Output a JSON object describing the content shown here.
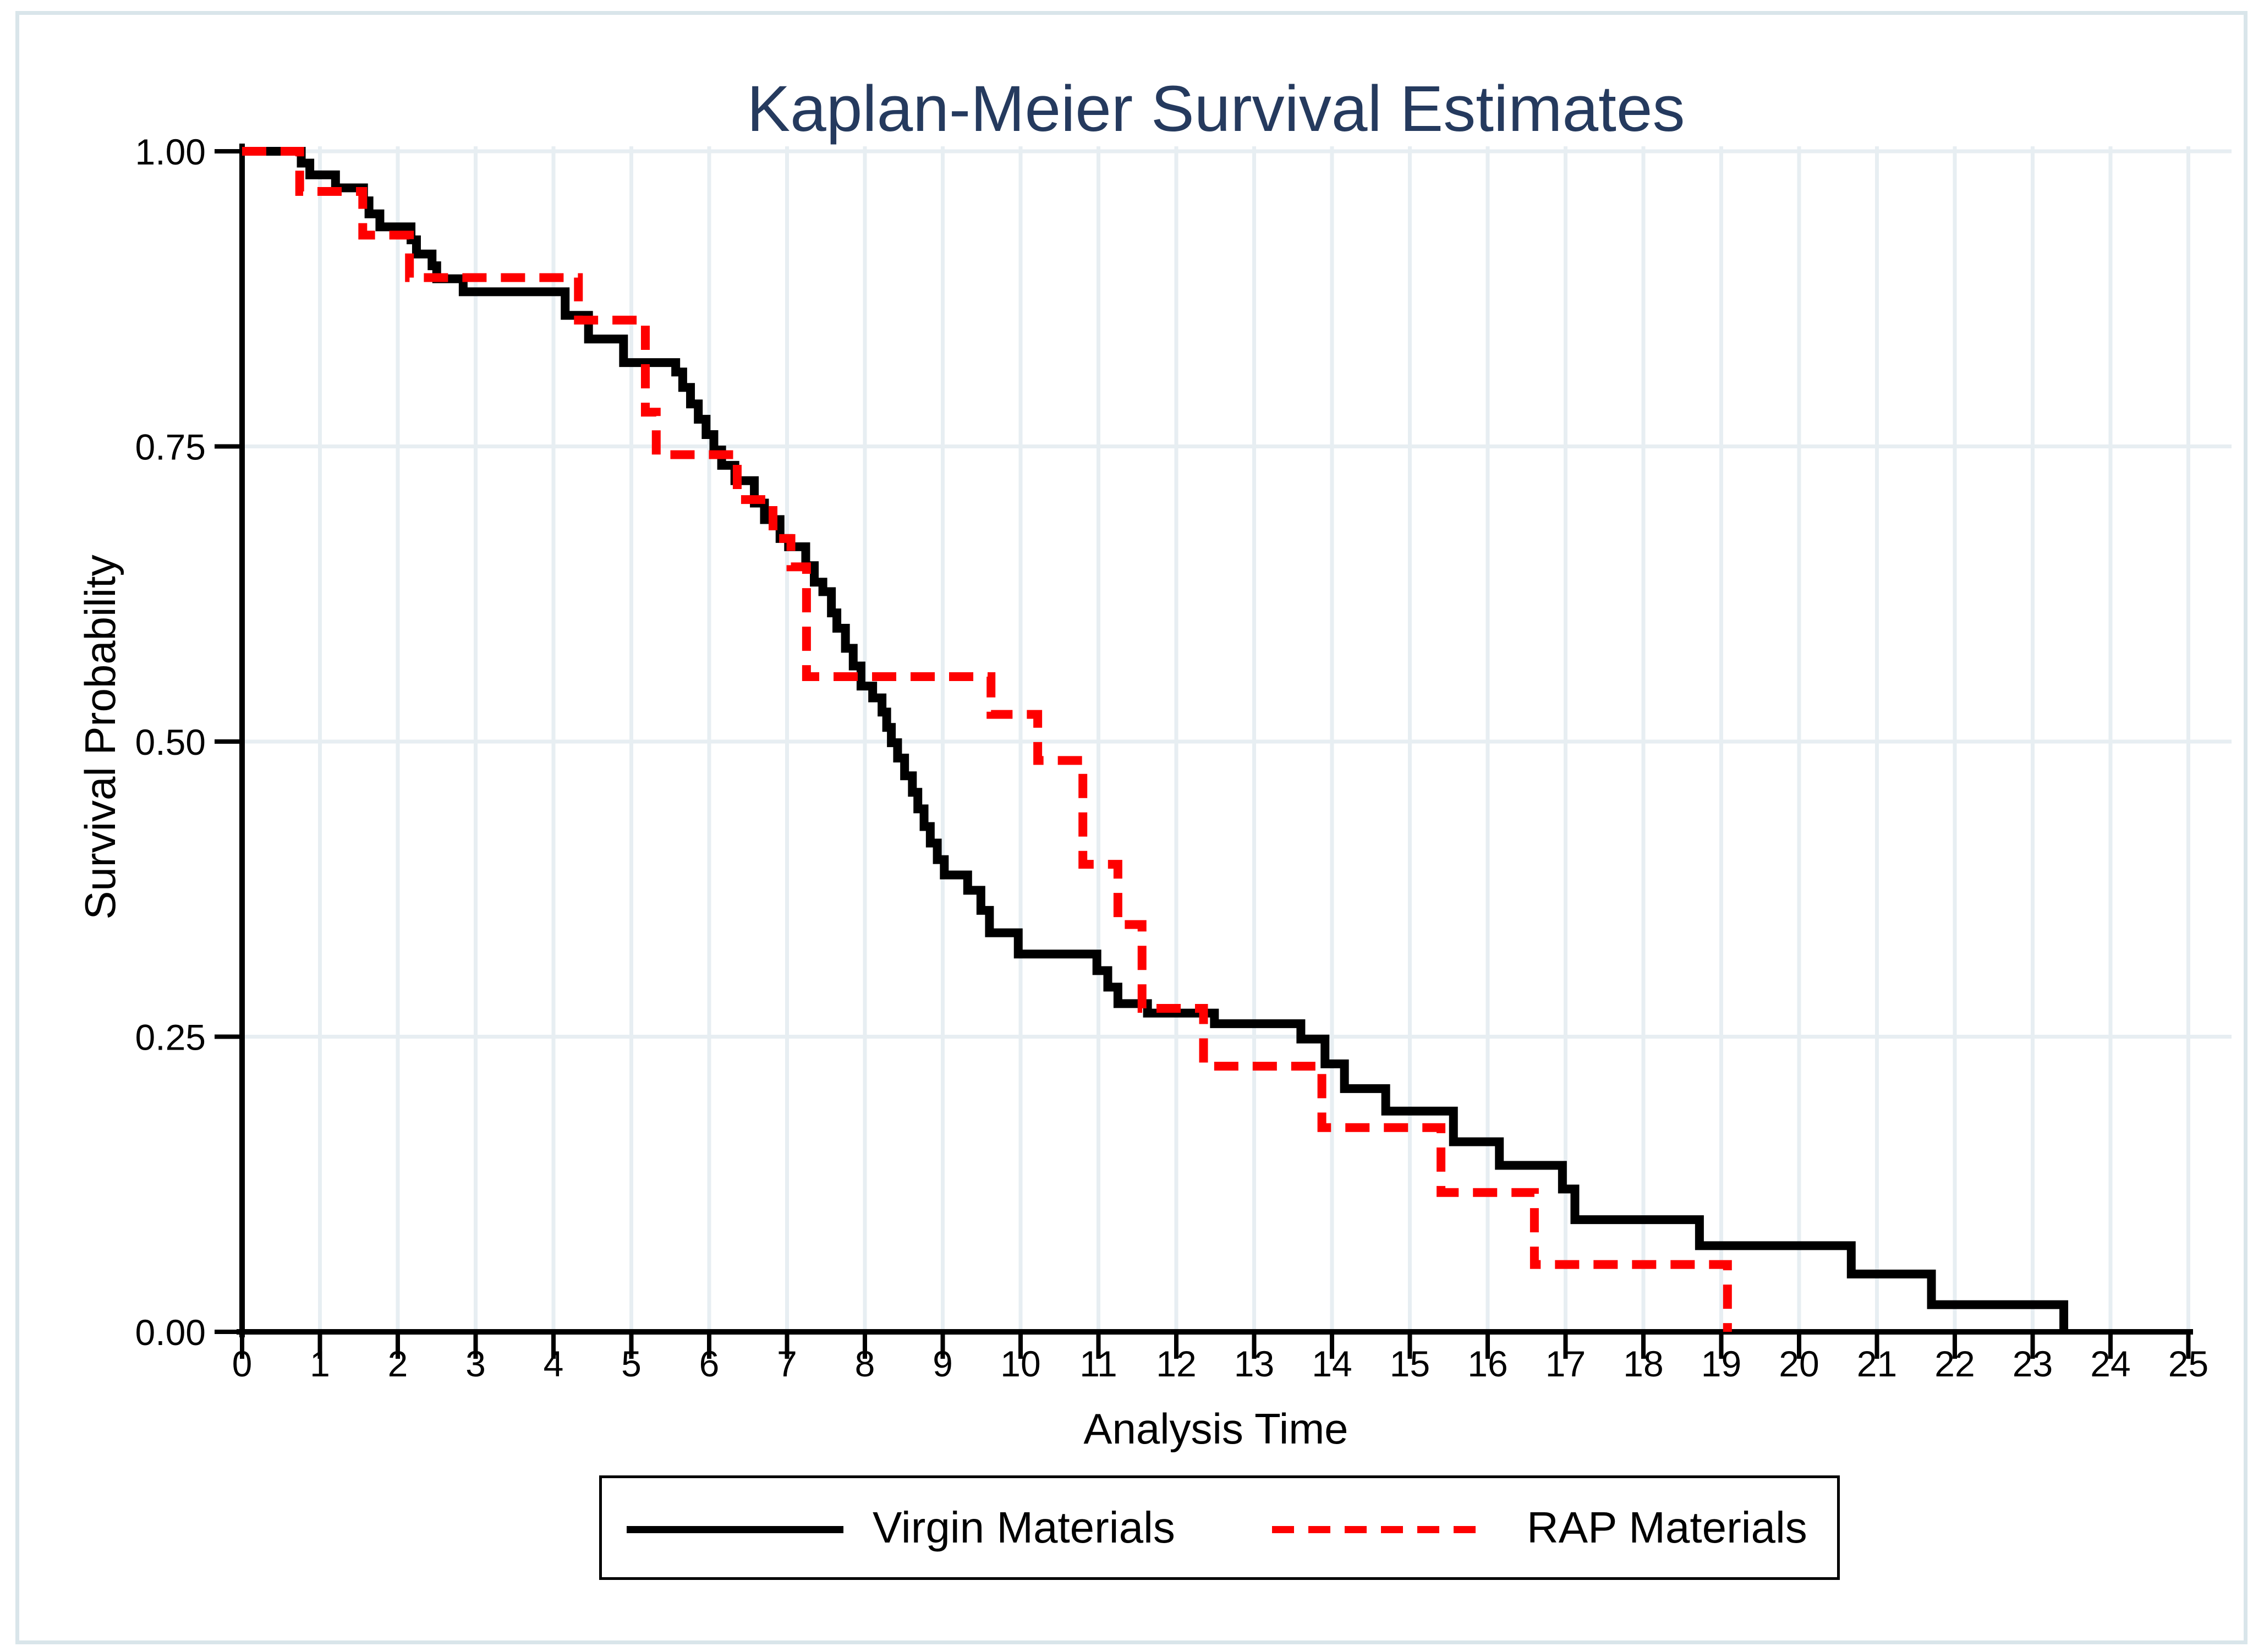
{
  "figure": {
    "background": "#ffffff",
    "border_color": "#d9e5ea",
    "title_color": "#253a5e"
  },
  "chart_data": {
    "type": "line",
    "subtype": "kaplan-meier-step",
    "title": "Kaplan-Meier Survival Estimates",
    "xlabel": "Analysis Time",
    "ylabel": "Survival Probability",
    "xlim": [
      0,
      25
    ],
    "ylim": [
      0,
      1
    ],
    "x_ticks": [
      0,
      1,
      2,
      3,
      4,
      5,
      6,
      7,
      8,
      9,
      10,
      11,
      12,
      13,
      14,
      15,
      16,
      17,
      18,
      19,
      20,
      21,
      22,
      23,
      24,
      25
    ],
    "y_ticks": [
      0,
      0.25,
      0.5,
      0.75,
      1
    ],
    "y_tick_labels": [
      "0.00",
      "0.25",
      "0.50",
      "0.75",
      "1.00"
    ],
    "grid": true,
    "gridline_color": "#e7eef2",
    "legend_position": "bottom-center",
    "series": [
      {
        "name": "Virgin Materials",
        "color": "#000000",
        "line_style": "solid",
        "steps": [
          [
            0.0,
            1.0
          ],
          [
            0.76,
            0.99
          ],
          [
            0.87,
            0.98
          ],
          [
            1.2,
            0.969
          ],
          [
            1.56,
            0.958
          ],
          [
            1.63,
            0.947
          ],
          [
            1.77,
            0.936
          ],
          [
            2.17,
            0.925
          ],
          [
            2.24,
            0.913
          ],
          [
            2.44,
            0.903
          ],
          [
            2.5,
            0.892
          ],
          [
            2.84,
            0.881
          ],
          [
            4.15,
            0.861
          ],
          [
            4.45,
            0.841
          ],
          [
            4.9,
            0.821
          ],
          [
            5.57,
            0.813
          ],
          [
            5.66,
            0.8
          ],
          [
            5.76,
            0.786
          ],
          [
            5.86,
            0.773
          ],
          [
            5.96,
            0.76
          ],
          [
            6.06,
            0.747
          ],
          [
            6.16,
            0.734
          ],
          [
            6.33,
            0.721
          ],
          [
            6.58,
            0.702
          ],
          [
            6.71,
            0.688
          ],
          [
            6.91,
            0.672
          ],
          [
            7.02,
            0.665
          ],
          [
            7.24,
            0.649
          ],
          [
            7.35,
            0.635
          ],
          [
            7.46,
            0.627
          ],
          [
            7.57,
            0.609
          ],
          [
            7.64,
            0.596
          ],
          [
            7.75,
            0.579
          ],
          [
            7.85,
            0.564
          ],
          [
            7.95,
            0.547
          ],
          [
            8.1,
            0.537
          ],
          [
            8.22,
            0.525
          ],
          [
            8.28,
            0.512
          ],
          [
            8.34,
            0.499
          ],
          [
            8.42,
            0.486
          ],
          [
            8.51,
            0.471
          ],
          [
            8.61,
            0.457
          ],
          [
            8.68,
            0.443
          ],
          [
            8.76,
            0.428
          ],
          [
            8.84,
            0.414
          ],
          [
            8.93,
            0.4
          ],
          [
            9.02,
            0.387
          ],
          [
            9.32,
            0.374
          ],
          [
            9.49,
            0.357
          ],
          [
            9.6,
            0.338
          ],
          [
            9.97,
            0.32
          ],
          [
            10.98,
            0.306
          ],
          [
            11.12,
            0.292
          ],
          [
            11.25,
            0.278
          ],
          [
            11.63,
            0.27
          ],
          [
            12.49,
            0.261
          ],
          [
            13.6,
            0.248
          ],
          [
            13.91,
            0.227
          ],
          [
            14.16,
            0.206
          ],
          [
            14.69,
            0.187
          ],
          [
            15.56,
            0.161
          ],
          [
            16.15,
            0.141
          ],
          [
            16.96,
            0.121
          ],
          [
            17.12,
            0.095
          ],
          [
            18.72,
            0.073
          ],
          [
            20.67,
            0.049
          ],
          [
            21.7,
            0.023
          ],
          [
            23.4,
            0.0
          ]
        ]
      },
      {
        "name": "RAP Materials",
        "color": "#fe0000",
        "line_style": "dashed",
        "steps": [
          [
            0.0,
            1.0
          ],
          [
            0.74,
            0.966
          ],
          [
            1.55,
            0.929
          ],
          [
            2.15,
            0.893
          ],
          [
            4.32,
            0.857
          ],
          [
            5.18,
            0.779
          ],
          [
            5.32,
            0.743
          ],
          [
            6.36,
            0.705
          ],
          [
            6.82,
            0.672
          ],
          [
            7.05,
            0.648
          ],
          [
            7.25,
            0.555
          ],
          [
            9.62,
            0.523
          ],
          [
            10.22,
            0.484
          ],
          [
            10.8,
            0.396
          ],
          [
            11.25,
            0.345
          ],
          [
            11.56,
            0.274
          ],
          [
            12.35,
            0.225
          ],
          [
            13.87,
            0.173
          ],
          [
            15.4,
            0.118
          ],
          [
            16.6,
            0.057
          ],
          [
            19.08,
            0.0
          ]
        ]
      }
    ]
  }
}
